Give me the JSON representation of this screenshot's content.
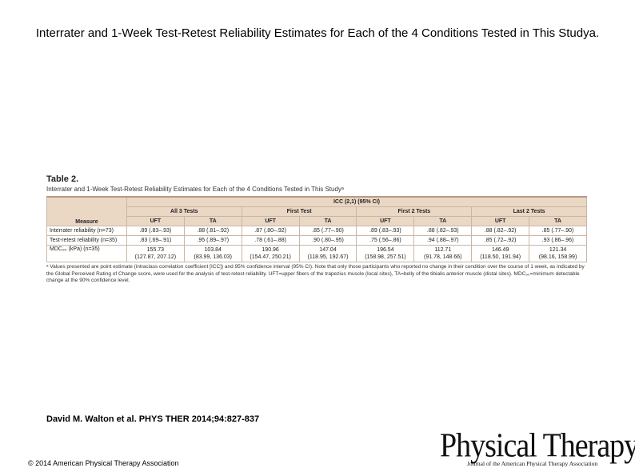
{
  "slide": {
    "title": "Interrater and 1-Week Test-Retest Reliability Estimates for Each of the 4 Conditions Tested in This Studya."
  },
  "table": {
    "label": "Table 2.",
    "caption": "Interrater and 1-Week Test-Retest Reliability Estimates for Each of the 4 Conditions Tested in This Studyᵃ",
    "measure_header": "Measure",
    "icc_header": "ICC (2,1) (95% CI)",
    "groups": [
      "All 3 Tests",
      "First Test",
      "First 2 Tests",
      "Last 2 Tests"
    ],
    "subheaders": [
      "UFT",
      "TA",
      "UFT",
      "TA",
      "UFT",
      "TA",
      "UFT",
      "TA"
    ],
    "rows": [
      {
        "measure": "Interrater reliability (n=73)",
        "values": [
          ".89 (.83–.93)",
          ".88 (.81–.92)",
          ".87 (.80–.92)",
          ".85 (.77–.90)",
          ".89 (.83–.93)",
          ".88 (.82–.93)",
          ".88 (.82–.92)",
          ".85 (.77–.90)"
        ]
      },
      {
        "measure": "Test-retest reliability (n=35)",
        "values": [
          ".83 (.69–.91)",
          ".95 (.89–.97)",
          ".78 (.61–.88)",
          ".90 (.80–.95)",
          ".75 (.56–.86)",
          ".94 (.88–.97)",
          ".85 (.72–.92)",
          ".93 (.86–.96)"
        ]
      },
      {
        "measure": "MDC₉₀ (kPa) (n=35)",
        "values": [
          {
            "main": "155.73",
            "ci": "(127.87, 207.12)"
          },
          {
            "main": "103.84",
            "ci": "(83.99, 136.03)"
          },
          {
            "main": "190.96",
            "ci": "(154.47, 250.21)"
          },
          {
            "main": "147.04",
            "ci": "(118.95, 192.67)"
          },
          {
            "main": "196.54",
            "ci": "(158.98, 257.51)"
          },
          {
            "main": "112.71",
            "ci": "(91.78, 148.66)"
          },
          {
            "main": "146.49",
            "ci": "(118.50, 191.94)"
          },
          {
            "main": "121.34",
            "ci": "(98.16, 158.99)"
          }
        ]
      }
    ],
    "footnote": "ᵃ Values presented are point estimate (intraclass correlation coefficient [ICC]) and 95% confidence interval (95% CI). Note that only those participants who reported no change in their condition over the course of 1 week, as indicated by the Global Perceived Rating of Change score, were used for the analysis of test-retest reliability. UFT=upper fibers of the trapezius muscle (local sites), TA=belly of the tibialis anterior muscle (distal sites). MDC₉₀=minimum detectable change at the 90% confidence level."
  },
  "citation": "David M. Walton et al. PHYS THER 2014;94:827-837",
  "copyright": "© 2014 American Physical Therapy Association",
  "logo": {
    "main": "Physical Therapy",
    "sub": "Journal of the American Physical Therapy Association"
  }
}
